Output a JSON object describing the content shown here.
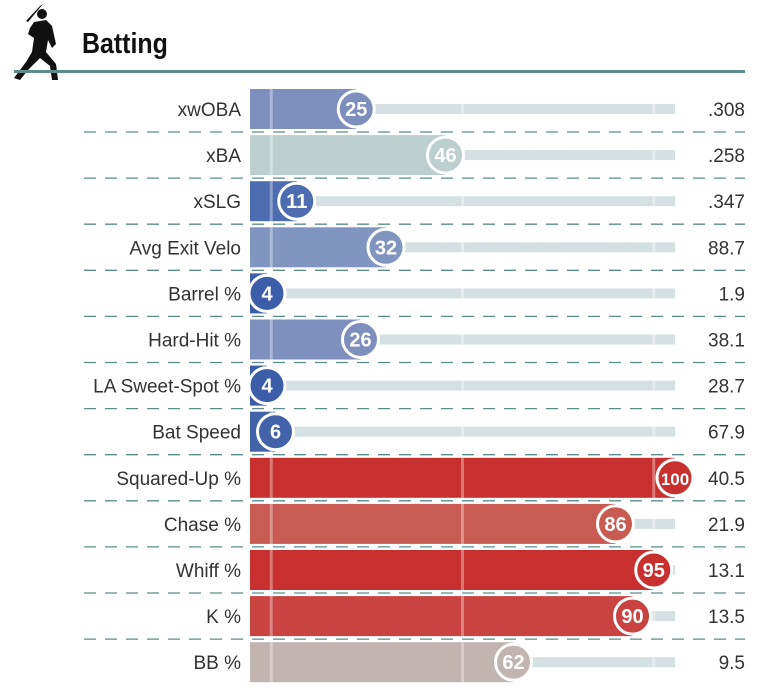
{
  "header": {
    "title": "Batting",
    "icon": "batter-icon"
  },
  "chart_data": {
    "type": "bar",
    "orientation": "horizontal",
    "title": "Batting",
    "xlim": [
      0,
      100
    ],
    "grid": true,
    "legend": "none",
    "categories": [
      "xwOBA",
      "xBA",
      "xSLG",
      "Avg Exit Velo",
      "Barrel %",
      "Hard-Hit %",
      "LA Sweet-Spot %",
      "Bat Speed",
      "Squared-Up %",
      "Chase %",
      "Whiff %",
      "K %",
      "BB %"
    ],
    "series": [
      {
        "values": [
          25,
          46,
          11,
          32,
          4,
          26,
          4,
          6,
          100,
          86,
          95,
          90,
          62
        ]
      }
    ],
    "stat_values": [
      ".308",
      ".258",
      ".347",
      "88.7",
      "1.9",
      "38.1",
      "28.7",
      "67.9",
      "40.5",
      "21.9",
      "13.1",
      "13.5",
      "9.5"
    ],
    "colors": [
      "#7d8fbd",
      "#bacfce",
      "#4e6db1",
      "#8096c0",
      "#3c5ea8",
      "#7d8fbd",
      "#3c5ea8",
      "#4262aa",
      "#c8302f",
      "#c85c52",
      "#c8302f",
      "#c94341",
      "#c1b4b1"
    ],
    "track_color": "#d4e1e3",
    "divider_color": "#5c8c8c"
  }
}
